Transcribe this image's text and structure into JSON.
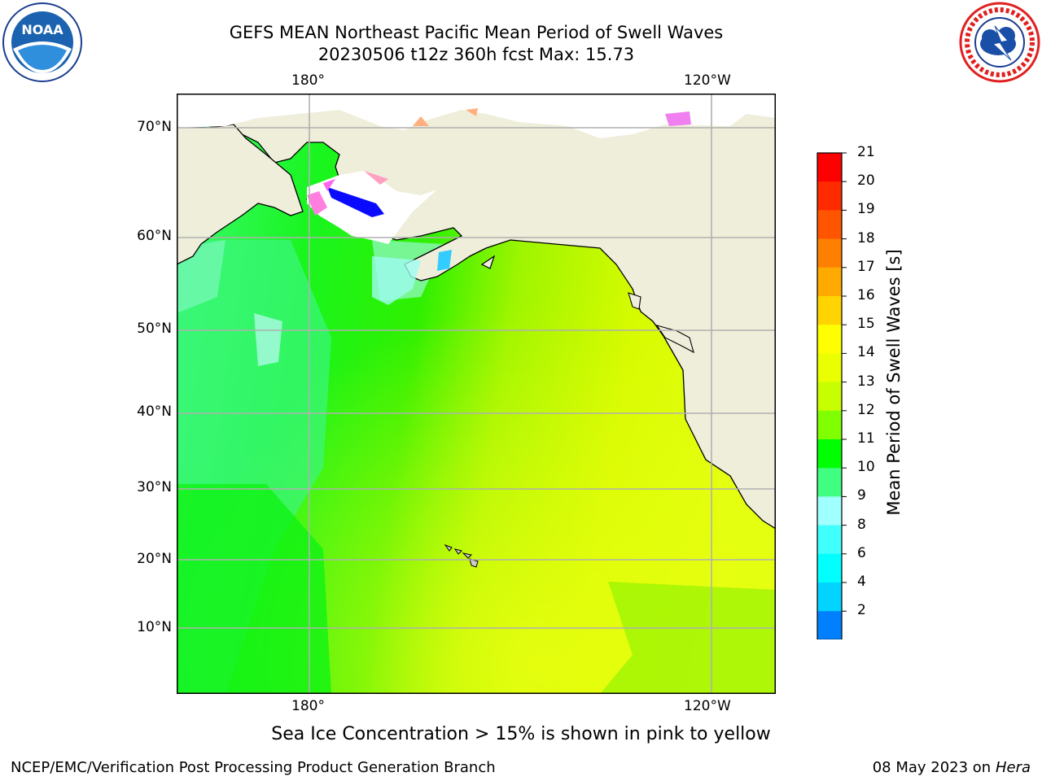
{
  "title_line1": "GEFS MEAN Northeast Pacific Mean Period of Swell Waves",
  "title_line2": "20230506 t12z 360h fcst   Max: 15.73",
  "lon_labels_top": [
    "180°",
    "120°W"
  ],
  "lon_labels_bottom": [
    "180°",
    "120°W"
  ],
  "lat_labels": [
    "70°N",
    "60°N",
    "50°N",
    "40°N",
    "30°N",
    "20°N",
    "10°N"
  ],
  "colorbar": {
    "title": "Mean Period of Swell Waves [s]",
    "ticks": [
      "21",
      "20",
      "19",
      "18",
      "17",
      "16",
      "15",
      "14",
      "13",
      "12",
      "11",
      "10",
      "9",
      "8",
      "6",
      "4",
      "2"
    ],
    "colors": [
      "#ff0000",
      "#ff2a00",
      "#ff5500",
      "#ff8000",
      "#ffaa00",
      "#ffd400",
      "#ffff00",
      "#eaff00",
      "#c8ff00",
      "#80ff00",
      "#00ff00",
      "#40ff80",
      "#a0ffff",
      "#40ffff",
      "#00ffff",
      "#00d4ff",
      "#0080ff"
    ],
    "extend_color": "#0000ff"
  },
  "note": "Sea Ice Concentration > 15% is shown in pink to yellow",
  "footer_left": "NCEP/EMC/Verification Post Processing Product Generation Branch",
  "footer_right_date": "08 May 2023 on",
  "footer_right_host": "Hera",
  "colors": {
    "land": "#efeedb",
    "grid": "#b0b0b0"
  }
}
